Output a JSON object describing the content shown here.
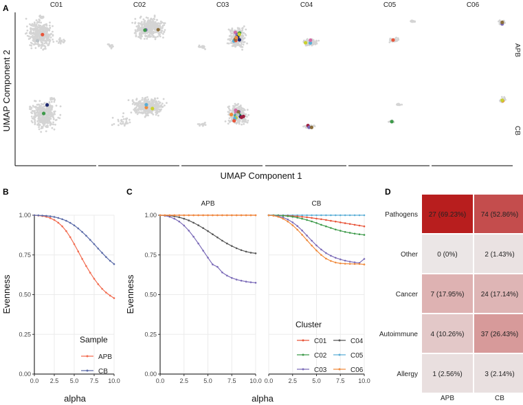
{
  "panels": {
    "a": "A",
    "b": "B",
    "c": "C",
    "d": "D"
  },
  "chart_data": [
    {
      "panel": "A",
      "type": "scatter",
      "xlabel": "UMAP Component 1",
      "ylabel": "UMAP Component 2",
      "columns": [
        "C01",
        "C02",
        "C03",
        "C04",
        "C05",
        "C06"
      ],
      "rows": [
        "APB",
        "CB"
      ]
    },
    {
      "panel": "B",
      "type": "line",
      "xlabel": "alpha",
      "ylabel": "Evenness",
      "xlim": [
        0,
        10
      ],
      "ylim": [
        0,
        1
      ],
      "xticks": [
        "0.0",
        "2.5",
        "5.0",
        "7.5",
        "10.0"
      ],
      "yticks": [
        "0.00",
        "0.25",
        "0.50",
        "0.75",
        "1.00"
      ],
      "legend_title": "Sample",
      "x": [
        0,
        0.5,
        1,
        1.5,
        2,
        2.5,
        3,
        3.5,
        4,
        4.5,
        5,
        5.5,
        6,
        6.5,
        7,
        7.5,
        8,
        8.5,
        9,
        9.5,
        10
      ],
      "series": [
        {
          "name": "APB",
          "color": "#f26b4f",
          "values": [
            1.0,
            0.998,
            0.995,
            0.99,
            0.982,
            0.97,
            0.953,
            0.93,
            0.9,
            0.862,
            0.818,
            0.772,
            0.725,
            0.68,
            0.638,
            0.6,
            0.566,
            0.537,
            0.513,
            0.494,
            0.478
          ]
        },
        {
          "name": "CB",
          "color": "#5b6ba8",
          "values": [
            1.0,
            0.999,
            0.998,
            0.996,
            0.993,
            0.989,
            0.983,
            0.975,
            0.965,
            0.952,
            0.936,
            0.917,
            0.895,
            0.871,
            0.845,
            0.818,
            0.79,
            0.763,
            0.737,
            0.713,
            0.692
          ]
        }
      ]
    },
    {
      "panel": "C",
      "type": "line",
      "xlabel": "alpha",
      "ylabel": "Evenness",
      "xlim": [
        0,
        10
      ],
      "ylim": [
        0,
        1
      ],
      "xticks": [
        "0.0",
        "2.5",
        "5.0",
        "7.5",
        "10.0"
      ],
      "yticks": [
        "0.00",
        "0.25",
        "0.50",
        "0.75",
        "1.00"
      ],
      "facets": [
        "APB",
        "CB"
      ],
      "legend_title": "Cluster",
      "x": [
        0,
        0.5,
        1,
        1.5,
        2,
        2.5,
        3,
        3.5,
        4,
        4.5,
        5,
        5.5,
        6,
        6.5,
        7,
        7.5,
        8,
        8.5,
        9,
        9.5,
        10
      ],
      "legend": [
        {
          "name": "C01",
          "color": "#e8553a"
        },
        {
          "name": "C04",
          "color": "#555555"
        },
        {
          "name": "C02",
          "color": "#3d9a4a"
        },
        {
          "name": "C05",
          "color": "#5aaed6"
        },
        {
          "name": "C03",
          "color": "#7b6bb8"
        },
        {
          "name": "C06",
          "color": "#f08a3c"
        }
      ],
      "series": [
        {
          "facet": "APB",
          "name": "C03",
          "color": "#7b6bb8",
          "values": [
            1.0,
            0.997,
            0.99,
            0.978,
            0.96,
            0.935,
            0.903,
            0.865,
            0.822,
            0.777,
            0.733,
            0.69,
            0.675,
            0.64,
            0.62,
            0.605,
            0.595,
            0.588,
            0.582,
            0.578,
            0.575
          ]
        },
        {
          "facet": "APB",
          "name": "C04",
          "color": "#555555",
          "values": [
            1.0,
            0.999,
            0.997,
            0.993,
            0.987,
            0.978,
            0.967,
            0.953,
            0.937,
            0.919,
            0.9,
            0.88,
            0.86,
            0.84,
            0.822,
            0.806,
            0.792,
            0.78,
            0.771,
            0.764,
            0.76
          ]
        },
        {
          "facet": "APB",
          "name": "C01",
          "color": "#e8553a",
          "values": [
            1.0,
            1.0,
            1.0,
            1.0,
            1.0,
            1.0,
            1.0,
            1.0,
            1.0,
            1.0,
            1.0,
            1.0,
            1.0,
            1.0,
            1.0,
            1.0,
            1.0,
            1.0,
            1.0,
            1.0,
            1.0
          ]
        },
        {
          "facet": "APB",
          "name": "C06",
          "color": "#f08a3c",
          "values": [
            1.0,
            1.0,
            1.0,
            1.0,
            1.0,
            1.0,
            1.0,
            1.0,
            1.0,
            1.0,
            1.0,
            1.0,
            1.0,
            1.0,
            1.0,
            1.0,
            1.0,
            1.0,
            1.0,
            1.0,
            1.0
          ]
        },
        {
          "facet": "CB",
          "name": "C05",
          "color": "#5aaed6",
          "values": [
            1.0,
            1.0,
            1.0,
            1.0,
            1.0,
            1.0,
            1.0,
            1.0,
            1.0,
            1.0,
            1.0,
            1.0,
            1.0,
            1.0,
            1.0,
            1.0,
            1.0,
            1.0,
            1.0,
            1.0,
            1.0
          ]
        },
        {
          "facet": "CB",
          "name": "C01",
          "color": "#e8553a",
          "values": [
            1.0,
            1.0,
            0.999,
            0.998,
            0.997,
            0.995,
            0.993,
            0.99,
            0.987,
            0.983,
            0.979,
            0.975,
            0.97,
            0.965,
            0.96,
            0.955,
            0.95,
            0.945,
            0.94,
            0.935,
            0.93
          ]
        },
        {
          "facet": "CB",
          "name": "C02",
          "color": "#3d9a4a",
          "values": [
            1.0,
            1.0,
            0.999,
            0.997,
            0.994,
            0.99,
            0.985,
            0.978,
            0.97,
            0.961,
            0.951,
            0.94,
            0.93,
            0.92,
            0.91,
            0.902,
            0.895,
            0.889,
            0.884,
            0.88,
            0.876
          ]
        },
        {
          "facet": "CB",
          "name": "C03",
          "color": "#7b6bb8",
          "values": [
            1.0,
            0.998,
            0.994,
            0.986,
            0.973,
            0.955,
            0.932,
            0.904,
            0.872,
            0.84,
            0.81,
            0.784,
            0.762,
            0.745,
            0.732,
            0.722,
            0.714,
            0.708,
            0.703,
            0.7,
            0.725
          ]
        },
        {
          "facet": "CB",
          "name": "C06",
          "color": "#f08a3c",
          "values": [
            1.0,
            0.997,
            0.99,
            0.978,
            0.96,
            0.937,
            0.909,
            0.877,
            0.843,
            0.809,
            0.778,
            0.75,
            0.727,
            0.712,
            0.702,
            0.697,
            0.695,
            0.694,
            0.693,
            0.693,
            0.69
          ]
        }
      ]
    },
    {
      "panel": "D",
      "type": "heatmap",
      "columns": [
        "APB",
        "CB"
      ],
      "rows": [
        "Pathogens",
        "Other",
        "Cancer",
        "Autoimmune",
        "Allergy"
      ],
      "cells": [
        [
          "27 (69.23%)",
          "74 (52.86%)"
        ],
        [
          "0 (0%)",
          "2 (1.43%)"
        ],
        [
          "7 (17.95%)",
          "24 (17.14%)"
        ],
        [
          "4 (10.26%)",
          "37 (26.43%)"
        ],
        [
          "1 (2.56%)",
          "3 (2.14%)"
        ]
      ],
      "percent": [
        [
          69.23,
          52.86
        ],
        [
          0,
          1.43
        ],
        [
          17.95,
          17.14
        ],
        [
          10.26,
          26.43
        ],
        [
          2.56,
          2.14
        ]
      ],
      "color_low": "#ebe6e6",
      "color_high": "#b71c1c"
    }
  ]
}
